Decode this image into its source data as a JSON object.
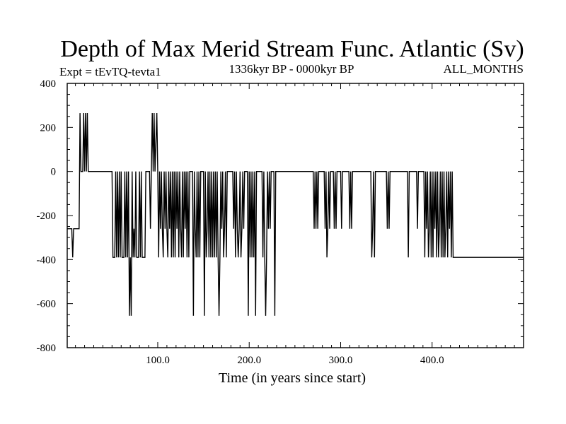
{
  "chart_data": {
    "type": "line",
    "title": "Depth of Max Merid Stream Func. Atlantic (Sv)",
    "subtitle_left": "Expt = tEvTQ-tevta1",
    "subtitle_center": "1336kyr BP - 0000kyr BP",
    "subtitle_right": "ALL_MONTHS",
    "xlabel": "Time (in years since start)",
    "ylabel": "",
    "xlim": [
      1,
      500
    ],
    "ylim": [
      -800,
      400
    ],
    "x_ticks": [
      100,
      200,
      300,
      400
    ],
    "x_tick_labels": [
      "100.0",
      "200.0",
      "300.0",
      "400.0"
    ],
    "y_ticks": [
      400,
      200,
      0,
      -200,
      -400,
      -600,
      -800
    ],
    "y_tick_labels": [
      "400",
      "200",
      "0",
      "-200",
      "-400",
      "-600",
      "-800"
    ],
    "series": [
      {
        "name": "tEvTQ-tevta1",
        "color": "#000000",
        "points": [
          [
            1,
            -260
          ],
          [
            6,
            -260
          ],
          [
            7,
            -390
          ],
          [
            8,
            -260
          ],
          [
            14,
            -260
          ],
          [
            15,
            265
          ],
          [
            16,
            0
          ],
          [
            18,
            0
          ],
          [
            19,
            265
          ],
          [
            20,
            0
          ],
          [
            21,
            265
          ],
          [
            22,
            0
          ],
          [
            23,
            265
          ],
          [
            24,
            0
          ],
          [
            50,
            0
          ],
          [
            51,
            -390
          ],
          [
            53,
            -390
          ],
          [
            54,
            0
          ],
          [
            55,
            -390
          ],
          [
            56,
            0
          ],
          [
            57,
            -390
          ],
          [
            58,
            0
          ],
          [
            59,
            -390
          ],
          [
            60,
            0
          ],
          [
            61,
            -390
          ],
          [
            63,
            -390
          ],
          [
            64,
            0
          ],
          [
            65,
            -390
          ],
          [
            66,
            0
          ],
          [
            67,
            -390
          ],
          [
            68,
            0
          ],
          [
            69,
            -655
          ],
          [
            70,
            -390
          ],
          [
            71,
            -655
          ],
          [
            72,
            0
          ],
          [
            73,
            -390
          ],
          [
            74,
            -260
          ],
          [
            75,
            -390
          ],
          [
            76,
            0
          ],
          [
            77,
            -390
          ],
          [
            79,
            -390
          ],
          [
            80,
            0
          ],
          [
            81,
            -390
          ],
          [
            82,
            0
          ],
          [
            83,
            -390
          ],
          [
            86,
            -390
          ],
          [
            87,
            0
          ],
          [
            91,
            0
          ],
          [
            92,
            -260
          ],
          [
            93,
            0
          ],
          [
            94,
            265
          ],
          [
            95,
            0
          ],
          [
            96,
            265
          ],
          [
            97,
            0
          ],
          [
            99,
            265
          ],
          [
            100,
            0
          ],
          [
            101,
            -390
          ],
          [
            102,
            0
          ],
          [
            103,
            -260
          ],
          [
            104,
            0
          ],
          [
            105,
            -260
          ],
          [
            106,
            -390
          ],
          [
            107,
            0
          ],
          [
            108,
            -260
          ],
          [
            109,
            0
          ],
          [
            110,
            -260
          ],
          [
            111,
            -390
          ],
          [
            112,
            0
          ],
          [
            113,
            -260
          ],
          [
            114,
            0
          ],
          [
            115,
            -390
          ],
          [
            116,
            0
          ],
          [
            117,
            -390
          ],
          [
            118,
            0
          ],
          [
            119,
            -390
          ],
          [
            120,
            0
          ],
          [
            121,
            -260
          ],
          [
            122,
            0
          ],
          [
            123,
            -390
          ],
          [
            124,
            0
          ],
          [
            125,
            -260
          ],
          [
            126,
            -390
          ],
          [
            127,
            0
          ],
          [
            128,
            -390
          ],
          [
            129,
            0
          ],
          [
            130,
            -260
          ],
          [
            131,
            0
          ],
          [
            132,
            -390
          ],
          [
            133,
            0
          ],
          [
            134,
            -390
          ],
          [
            135,
            0
          ],
          [
            138,
            0
          ],
          [
            139,
            -655
          ],
          [
            140,
            0
          ],
          [
            141,
            -260
          ],
          [
            142,
            -390
          ],
          [
            143,
            0
          ],
          [
            144,
            -390
          ],
          [
            145,
            0
          ],
          [
            146,
            -390
          ],
          [
            147,
            0
          ],
          [
            150,
            0
          ],
          [
            151,
            -655
          ],
          [
            152,
            0
          ],
          [
            153,
            -390
          ],
          [
            154,
            -260
          ],
          [
            155,
            0
          ],
          [
            156,
            -390
          ],
          [
            157,
            0
          ],
          [
            158,
            -390
          ],
          [
            159,
            0
          ],
          [
            160,
            -390
          ],
          [
            161,
            0
          ],
          [
            162,
            -390
          ],
          [
            163,
            0
          ],
          [
            164,
            -390
          ],
          [
            165,
            0
          ],
          [
            166,
            -390
          ],
          [
            167,
            -655
          ],
          [
            168,
            -390
          ],
          [
            169,
            0
          ],
          [
            170,
            -260
          ],
          [
            171,
            0
          ],
          [
            172,
            -390
          ],
          [
            173,
            -260
          ],
          [
            174,
            0
          ],
          [
            175,
            -390
          ],
          [
            176,
            0
          ],
          [
            182,
            0
          ],
          [
            183,
            -260
          ],
          [
            184,
            0
          ],
          [
            185,
            -390
          ],
          [
            186,
            0
          ],
          [
            187,
            -260
          ],
          [
            188,
            -390
          ],
          [
            189,
            -260
          ],
          [
            190,
            0
          ],
          [
            191,
            -390
          ],
          [
            192,
            -260
          ],
          [
            193,
            0
          ],
          [
            194,
            -260
          ],
          [
            195,
            0
          ],
          [
            198,
            0
          ],
          [
            199,
            -655
          ],
          [
            200,
            0
          ],
          [
            201,
            -390
          ],
          [
            202,
            0
          ],
          [
            203,
            -390
          ],
          [
            204,
            0
          ],
          [
            205,
            -390
          ],
          [
            206,
            0
          ],
          [
            207,
            -655
          ],
          [
            208,
            0
          ],
          [
            214,
            0
          ],
          [
            215,
            -390
          ],
          [
            216,
            0
          ],
          [
            217,
            -390
          ],
          [
            218,
            -655
          ],
          [
            219,
            -390
          ],
          [
            220,
            0
          ],
          [
            221,
            -260
          ],
          [
            222,
            0
          ],
          [
            223,
            -260
          ],
          [
            224,
            0
          ],
          [
            227,
            0
          ],
          [
            228,
            -655
          ],
          [
            229,
            0
          ],
          [
            270,
            0
          ],
          [
            271,
            -260
          ],
          [
            272,
            0
          ],
          [
            273,
            -260
          ],
          [
            274,
            0
          ],
          [
            275,
            -260
          ],
          [
            276,
            0
          ],
          [
            282,
            0
          ],
          [
            283,
            -260
          ],
          [
            284,
            0
          ],
          [
            285,
            -390
          ],
          [
            286,
            -260
          ],
          [
            287,
            0
          ],
          [
            288,
            -260
          ],
          [
            289,
            0
          ],
          [
            292,
            0
          ],
          [
            293,
            -260
          ],
          [
            294,
            0
          ],
          [
            295,
            -260
          ],
          [
            296,
            0
          ],
          [
            300,
            0
          ],
          [
            301,
            -260
          ],
          [
            302,
            0
          ],
          [
            309,
            0
          ],
          [
            310,
            -260
          ],
          [
            311,
            0
          ],
          [
            312,
            -260
          ],
          [
            313,
            0
          ],
          [
            333,
            0
          ],
          [
            334,
            -390
          ],
          [
            335,
            -260
          ],
          [
            336,
            0
          ],
          [
            337,
            -390
          ],
          [
            338,
            0
          ],
          [
            350,
            0
          ],
          [
            351,
            -260
          ],
          [
            352,
            0
          ],
          [
            353,
            -260
          ],
          [
            354,
            0
          ],
          [
            373,
            0
          ],
          [
            374,
            -390
          ],
          [
            375,
            0
          ],
          [
            383,
            0
          ],
          [
            384,
            -260
          ],
          [
            385,
            0
          ],
          [
            391,
            0
          ],
          [
            392,
            -390
          ],
          [
            393,
            0
          ],
          [
            394,
            -260
          ],
          [
            395,
            0
          ],
          [
            396,
            -390
          ],
          [
            397,
            -260
          ],
          [
            398,
            0
          ],
          [
            399,
            -390
          ],
          [
            400,
            0
          ],
          [
            401,
            -390
          ],
          [
            402,
            0
          ],
          [
            403,
            -260
          ],
          [
            404,
            0
          ],
          [
            405,
            -390
          ],
          [
            406,
            0
          ],
          [
            407,
            -390
          ],
          [
            408,
            -260
          ],
          [
            409,
            0
          ],
          [
            410,
            -390
          ],
          [
            411,
            0
          ],
          [
            412,
            -390
          ],
          [
            413,
            0
          ],
          [
            414,
            -390
          ],
          [
            415,
            -260
          ],
          [
            416,
            0
          ],
          [
            417,
            -390
          ],
          [
            418,
            0
          ],
          [
            419,
            -260
          ],
          [
            420,
            0
          ],
          [
            421,
            -390
          ],
          [
            422,
            0
          ],
          [
            423,
            -390
          ],
          [
            500,
            -390
          ]
        ]
      }
    ]
  }
}
